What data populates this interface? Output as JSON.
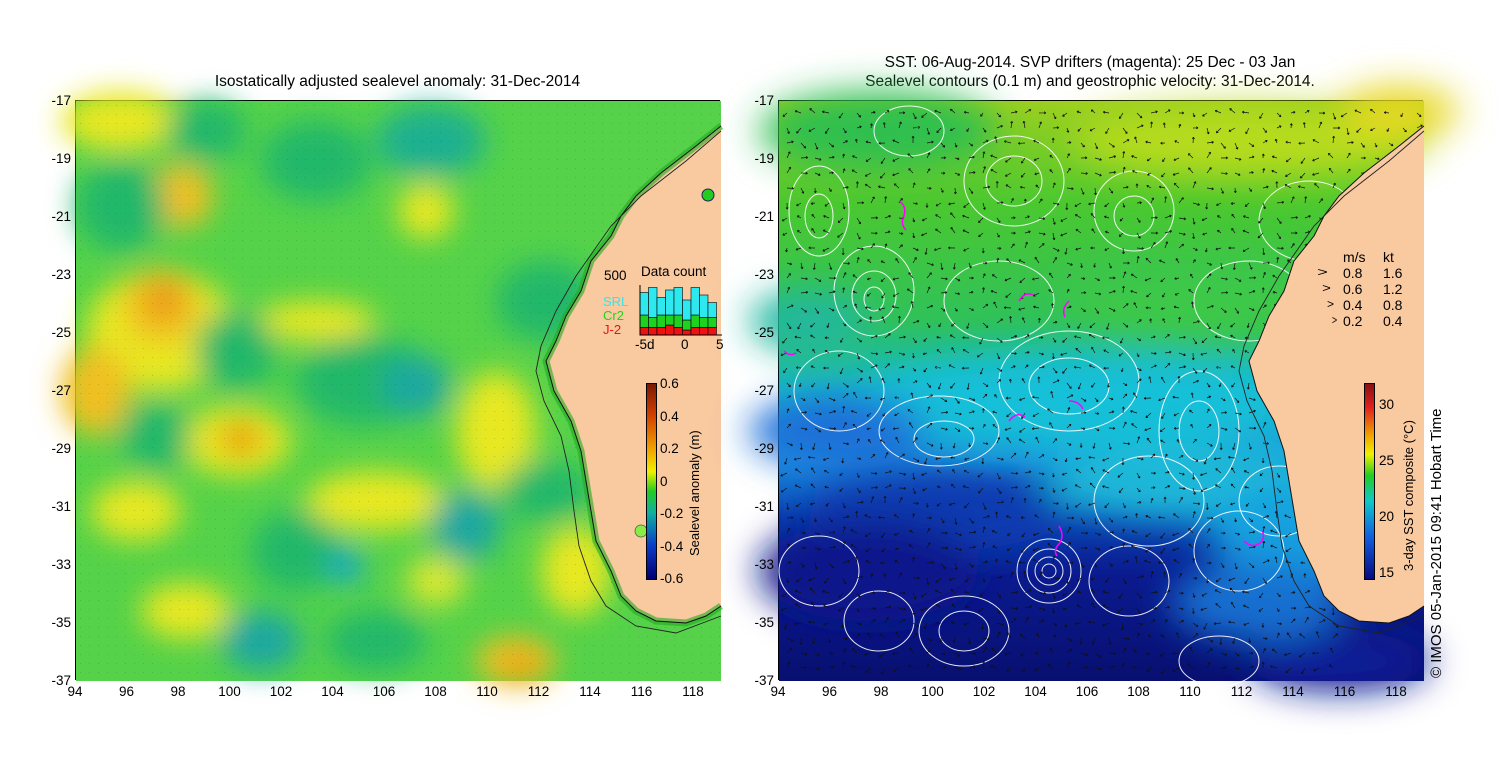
{
  "left_panel": {
    "title": "Isostatically adjusted sealevel anomaly: 31-Dec-2014",
    "y_ticks": [
      "-17",
      "-19",
      "-21",
      "-23",
      "-25",
      "-27",
      "-29",
      "-31",
      "-33",
      "-35",
      "-37"
    ],
    "x_ticks": [
      "94",
      "96",
      "98",
      "100",
      "102",
      "104",
      "106",
      "108",
      "110",
      "112",
      "114",
      "116",
      "118"
    ],
    "data_count": {
      "title": "Data count",
      "max_label": "500",
      "legend": [
        {
          "label": "SRL",
          "color": "#2ee8f0"
        },
        {
          "label": "Cr2",
          "color": "#1fd21f"
        },
        {
          "label": "J-2",
          "color": "#ee1111"
        }
      ],
      "x_ticks": [
        "-5d",
        "0",
        "5"
      ],
      "bars": [
        {
          "srl": 0.45,
          "cr2": 0.25,
          "j2": 0.15
        },
        {
          "srl": 0.6,
          "cr2": 0.2,
          "j2": 0.15
        },
        {
          "srl": 0.35,
          "cr2": 0.25,
          "j2": 0.15
        },
        {
          "srl": 0.5,
          "cr2": 0.2,
          "j2": 0.2
        },
        {
          "srl": 0.55,
          "cr2": 0.25,
          "j2": 0.15
        },
        {
          "srl": 0.4,
          "cr2": 0.2,
          "j2": 0.1
        },
        {
          "srl": 0.55,
          "cr2": 0.25,
          "j2": 0.15
        },
        {
          "srl": 0.45,
          "cr2": 0.2,
          "j2": 0.15
        },
        {
          "srl": 0.3,
          "cr2": 0.2,
          "j2": 0.15
        }
      ]
    },
    "colorbar": {
      "label": "Sealevel anomaly (m)",
      "ticks": [
        "0.6",
        "0.4",
        "0.2",
        "0",
        "-0.2",
        "-0.4",
        "-0.6"
      ],
      "colors": [
        "#7a1a00",
        "#d24000",
        "#f0a000",
        "#f0f000",
        "#22cc22",
        "#11b0a0",
        "#0a3cc8",
        "#000070"
      ]
    }
  },
  "right_panel": {
    "title_line1": "SST: 06-Aug-2014. SVP drifters (magenta): 25 Dec - 03 Jan",
    "title_line2": "Sealevel contours (0.1 m) and geostrophic velocity: 31-Dec-2014.",
    "y_ticks": [
      "-17",
      "-19",
      "-21",
      "-23",
      "-25",
      "-27",
      "-29",
      "-31",
      "-33",
      "-35",
      "-37"
    ],
    "x_ticks": [
      "94",
      "96",
      "98",
      "100",
      "102",
      "104",
      "106",
      "108",
      "110",
      "112",
      "114",
      "116",
      "118"
    ],
    "velocity_legend": {
      "header_ms": "m/s",
      "header_kt": "kt",
      "rows": [
        {
          "ms": "0.8",
          "kt": "1.6"
        },
        {
          "ms": "0.6",
          "kt": "1.2"
        },
        {
          "ms": "0.4",
          "kt": "0.8"
        },
        {
          "ms": "0.2",
          "kt": "0.4"
        }
      ]
    },
    "colorbar": {
      "label": "3-day SST composite (°C)",
      "ticks": [
        "30",
        "25",
        "20",
        "15"
      ],
      "colors": [
        "#8a1010",
        "#e02020",
        "#f0a000",
        "#f0f000",
        "#22cc22",
        "#10c8c8",
        "#1060e0",
        "#0a0a80"
      ]
    }
  },
  "credit": "© IMOS 05-Jan-2015 09:41 Hobart Time",
  "colors": {
    "land": "#f9c9a0",
    "ocean_mid": "#55d24a",
    "sst_warm": "#33c840",
    "sst_cool": "#14b4e0",
    "sst_cold": "#0a1a96",
    "drifter": "#ff00ff"
  }
}
